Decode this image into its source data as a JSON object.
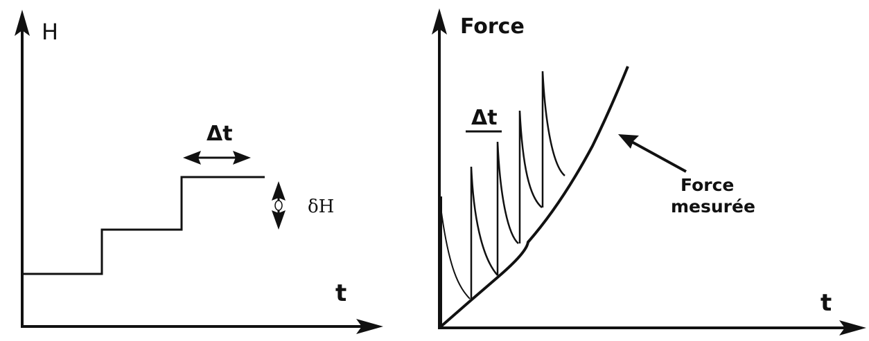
{
  "left_panel": {
    "y_axis_label": "H",
    "x_axis_label": "t",
    "interval_label": "Δt",
    "step_height_label": "δH"
  },
  "right_panel": {
    "y_axis_label": "Force",
    "x_axis_label": "t",
    "interval_label": "Δt",
    "annotation_line1": "Force",
    "annotation_line2": "mesurée"
  },
  "colors": {
    "ink": "#111111",
    "background": "#ffffff"
  }
}
